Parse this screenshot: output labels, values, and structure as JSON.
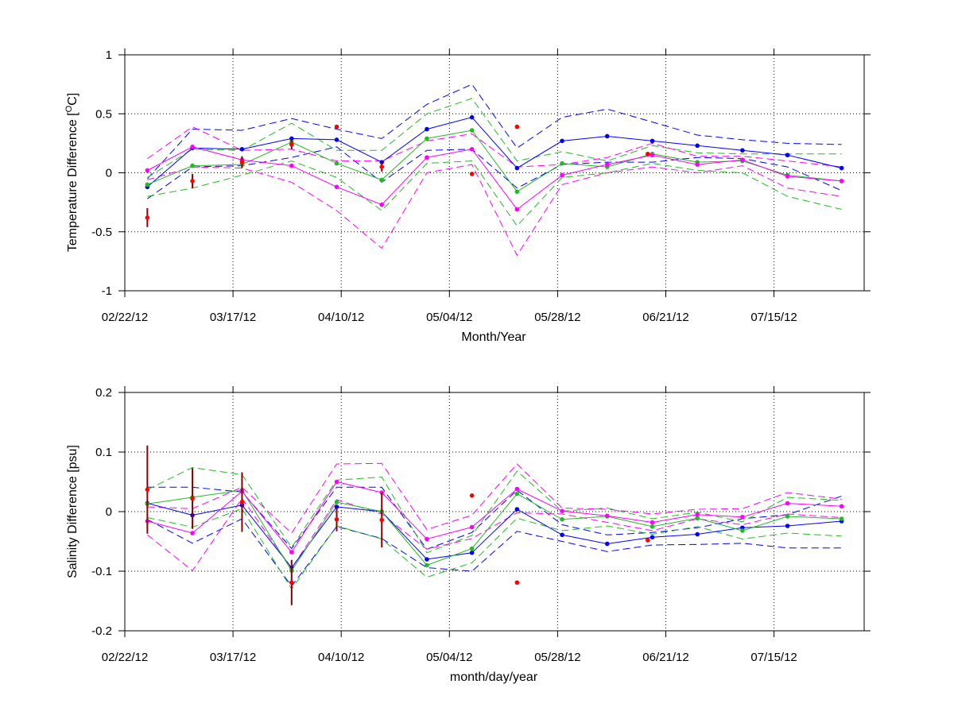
{
  "chart_data": [
    {
      "type": "line",
      "ylabel_main": "Temperature Difference [",
      "ylabel_sup": "O",
      "ylabel_tail": "C]",
      "xlabel": "Month/Year",
      "ylim": [
        -1,
        1
      ],
      "yticks": [
        -1,
        -0.5,
        0,
        0.5,
        1
      ],
      "ytick_labels": [
        "-1",
        "-0.5",
        "0",
        "0.5",
        "1"
      ],
      "xlim": [
        "2012-02-22",
        "2012-08-04"
      ],
      "xticks": [
        "2012-02-22",
        "2012-03-17",
        "2012-04-10",
        "2012-05-04",
        "2012-05-28",
        "2012-06-21",
        "2012-07-15"
      ],
      "xtick_labels": [
        "02/22/12",
        "03/17/12",
        "04/10/12",
        "05/04/12",
        "05/28/12",
        "06/21/12",
        "07/15/12"
      ],
      "grid": true,
      "series": [
        {
          "color": "#0000ff",
          "style": "solid",
          "markers": true,
          "x": [
            "2012-02-27",
            "2012-03-08",
            "2012-03-19",
            "2012-03-30",
            "2012-04-09",
            "2012-04-19",
            "2012-04-29",
            "2012-05-09",
            "2012-05-19",
            "2012-05-29",
            "2012-06-08",
            "2012-06-18",
            "2012-06-28",
            "2012-07-08",
            "2012-07-18",
            "2012-07-30"
          ],
          "y": [
            -0.12,
            0.21,
            0.2,
            0.29,
            0.28,
            0.09,
            0.37,
            0.47,
            0.04,
            0.27,
            0.31,
            0.27,
            0.23,
            0.19,
            0.15,
            0.04
          ]
        },
        {
          "color": "#0000ff",
          "style": "dashed",
          "markers": false,
          "x": [
            "2012-02-27",
            "2012-03-08",
            "2012-03-19",
            "2012-03-30",
            "2012-04-09",
            "2012-04-19",
            "2012-04-29",
            "2012-05-09",
            "2012-05-19",
            "2012-05-29",
            "2012-06-08",
            "2012-06-18",
            "2012-06-28",
            "2012-07-08",
            "2012-07-18",
            "2012-07-30"
          ],
          "y": [
            -0.05,
            0.37,
            0.36,
            0.46,
            0.37,
            0.29,
            0.58,
            0.75,
            0.21,
            0.47,
            0.54,
            0.43,
            0.32,
            0.28,
            0.25,
            0.24
          ]
        },
        {
          "color": "#0000ff",
          "style": "dashed",
          "markers": false,
          "x": [
            "2012-02-27",
            "2012-03-08",
            "2012-03-19",
            "2012-03-30",
            "2012-04-09",
            "2012-04-19",
            "2012-04-29",
            "2012-05-09",
            "2012-05-19",
            "2012-05-29",
            "2012-06-08",
            "2012-06-18",
            "2012-06-28",
            "2012-07-08",
            "2012-07-18",
            "2012-07-30"
          ],
          "y": [
            -0.22,
            0.05,
            0.06,
            0.13,
            0.22,
            -0.08,
            0.19,
            0.2,
            -0.13,
            0.07,
            0.09,
            0.09,
            0.13,
            0.12,
            0.05,
            -0.15
          ]
        },
        {
          "color": "#22bb22",
          "style": "solid",
          "markers": true,
          "x": [
            "2012-02-27",
            "2012-03-08",
            "2012-03-19",
            "2012-03-30",
            "2012-04-09",
            "2012-04-19",
            "2012-04-29",
            "2012-05-09",
            "2012-05-19",
            "2012-05-29",
            "2012-06-08",
            "2012-06-18",
            "2012-06-28",
            "2012-07-08",
            "2012-07-18",
            "2012-07-30"
          ],
          "y": [
            -0.1,
            0.06,
            0.07,
            0.26,
            0.08,
            -0.06,
            0.29,
            0.36,
            -0.16,
            0.08,
            0.05,
            0.16,
            0.09,
            0.1,
            -0.02,
            -0.07
          ]
        },
        {
          "color": "#22bb22",
          "style": "dashed",
          "markers": false,
          "x": [
            "2012-02-27",
            "2012-03-08",
            "2012-03-19",
            "2012-03-30",
            "2012-04-09",
            "2012-04-19",
            "2012-04-29",
            "2012-05-09",
            "2012-05-19",
            "2012-05-29",
            "2012-06-08",
            "2012-06-18",
            "2012-06-28",
            "2012-07-08",
            "2012-07-18",
            "2012-07-30"
          ],
          "y": [
            -0.04,
            0.2,
            0.19,
            0.42,
            0.19,
            0.19,
            0.5,
            0.63,
            0.1,
            0.18,
            0.1,
            0.23,
            0.17,
            0.16,
            0.16,
            0.16
          ]
        },
        {
          "color": "#22bb22",
          "style": "dashed",
          "markers": false,
          "x": [
            "2012-02-27",
            "2012-03-08",
            "2012-03-19",
            "2012-03-30",
            "2012-04-09",
            "2012-04-19",
            "2012-04-29",
            "2012-05-09",
            "2012-05-19",
            "2012-05-29",
            "2012-06-08",
            "2012-06-18",
            "2012-06-28",
            "2012-07-08",
            "2012-07-18",
            "2012-07-30"
          ],
          "y": [
            -0.2,
            -0.13,
            -0.02,
            0.1,
            -0.04,
            -0.32,
            0.08,
            0.1,
            -0.45,
            -0.04,
            0.0,
            0.08,
            0.02,
            0.0,
            -0.2,
            -0.31
          ]
        },
        {
          "color": "#ff00ff",
          "style": "solid",
          "markers": true,
          "x": [
            "2012-02-27",
            "2012-03-08",
            "2012-03-19",
            "2012-03-30",
            "2012-04-09",
            "2012-04-19",
            "2012-04-29",
            "2012-05-09",
            "2012-05-19",
            "2012-05-29",
            "2012-06-08",
            "2012-06-18",
            "2012-06-28",
            "2012-07-08",
            "2012-07-18",
            "2012-07-30"
          ],
          "y": [
            0.02,
            0.22,
            0.11,
            0.06,
            -0.12,
            -0.27,
            0.13,
            0.2,
            -0.31,
            -0.02,
            0.07,
            0.15,
            0.07,
            0.11,
            -0.03,
            -0.07
          ]
        },
        {
          "color": "#ff00ff",
          "style": "dashed",
          "markers": false,
          "x": [
            "2012-02-27",
            "2012-03-08",
            "2012-03-19",
            "2012-03-30",
            "2012-04-09",
            "2012-04-19",
            "2012-04-29",
            "2012-05-09",
            "2012-05-19",
            "2012-05-29",
            "2012-06-08",
            "2012-06-18",
            "2012-06-28",
            "2012-07-08",
            "2012-07-18",
            "2012-07-30"
          ],
          "y": [
            0.12,
            0.39,
            0.19,
            0.2,
            0.1,
            0.1,
            0.27,
            0.33,
            0.05,
            0.07,
            0.13,
            0.25,
            0.14,
            0.14,
            0.1,
            0.05
          ]
        },
        {
          "color": "#ff00ff",
          "style": "dashed",
          "markers": false,
          "x": [
            "2012-02-27",
            "2012-03-08",
            "2012-03-19",
            "2012-03-30",
            "2012-04-09",
            "2012-04-19",
            "2012-04-29",
            "2012-05-09",
            "2012-05-19",
            "2012-05-29",
            "2012-06-08",
            "2012-06-18",
            "2012-06-28",
            "2012-07-08",
            "2012-07-18",
            "2012-07-30"
          ],
          "y": [
            -0.06,
            0.05,
            0.04,
            -0.08,
            -0.32,
            -0.64,
            0.0,
            0.07,
            -0.7,
            -0.1,
            0.0,
            0.05,
            0.0,
            0.06,
            -0.13,
            -0.2
          ]
        }
      ],
      "observations": {
        "color": "#ff0000",
        "errcolor": "#8b0000",
        "x": [
          "2012-02-27",
          "2012-03-08",
          "2012-03-19",
          "2012-03-30",
          "2012-04-09",
          "2012-04-19",
          "2012-05-09",
          "2012-05-19",
          "2012-06-17"
        ],
        "y": [
          -0.38,
          -0.07,
          0.09,
          0.24,
          0.39,
          0.05,
          -0.01,
          0.39,
          0.16
        ],
        "err": [
          0.08,
          0.06,
          0.05,
          0.04,
          0.0,
          0.04,
          0.0,
          0.0,
          0.0
        ]
      }
    },
    {
      "type": "line",
      "ylabel": "Salinity Difference [psu]",
      "xlabel": "month/day/year",
      "ylim": [
        -0.2,
        0.2
      ],
      "yticks": [
        -0.2,
        -0.1,
        0,
        0.1,
        0.2
      ],
      "ytick_labels": [
        "-0.2",
        "-0.1",
        "0",
        "0.1",
        "0.2"
      ],
      "xlim": [
        "2012-02-22",
        "2012-08-04"
      ],
      "xticks": [
        "2012-02-22",
        "2012-03-17",
        "2012-04-10",
        "2012-05-04",
        "2012-05-28",
        "2012-06-21",
        "2012-07-15"
      ],
      "xtick_labels": [
        "02/22/12",
        "03/17/12",
        "04/10/12",
        "05/04/12",
        "05/28/12",
        "06/21/12",
        "07/15/12"
      ],
      "grid": true,
      "series": [
        {
          "color": "#0000ff",
          "style": "solid",
          "markers": true,
          "x": [
            "2012-02-27",
            "2012-03-08",
            "2012-03-19",
            "2012-03-30",
            "2012-04-09",
            "2012-04-19",
            "2012-04-29",
            "2012-05-09",
            "2012-05-19",
            "2012-05-29",
            "2012-06-08",
            "2012-06-18",
            "2012-06-28",
            "2012-07-08",
            "2012-07-18",
            "2012-07-30"
          ],
          "y": [
            0.014,
            -0.006,
            0.011,
            -0.094,
            0.008,
            0.0,
            -0.08,
            -0.069,
            0.004,
            -0.039,
            -0.054,
            -0.043,
            -0.038,
            -0.027,
            -0.024,
            -0.016
          ]
        },
        {
          "color": "#0000ff",
          "style": "dashed",
          "markers": false,
          "x": [
            "2012-02-27",
            "2012-03-08",
            "2012-03-19",
            "2012-03-30",
            "2012-04-09",
            "2012-04-19",
            "2012-04-29",
            "2012-05-09",
            "2012-05-19",
            "2012-05-29",
            "2012-06-08",
            "2012-06-18",
            "2012-06-28",
            "2012-07-08",
            "2012-07-18",
            "2012-07-30"
          ],
          "y": [
            0.041,
            0.041,
            0.033,
            -0.062,
            0.041,
            0.041,
            -0.063,
            -0.035,
            0.036,
            -0.022,
            -0.039,
            -0.035,
            -0.027,
            -0.012,
            -0.005,
            0.026
          ]
        },
        {
          "color": "#0000ff",
          "style": "dashed",
          "markers": false,
          "x": [
            "2012-02-27",
            "2012-03-08",
            "2012-03-19",
            "2012-03-30",
            "2012-04-09",
            "2012-04-19",
            "2012-04-29",
            "2012-05-09",
            "2012-05-19",
            "2012-05-29",
            "2012-06-08",
            "2012-06-18",
            "2012-06-28",
            "2012-07-08",
            "2012-07-18",
            "2012-07-30"
          ],
          "y": [
            -0.013,
            -0.053,
            -0.012,
            -0.125,
            -0.025,
            -0.045,
            -0.094,
            -0.1,
            -0.033,
            -0.05,
            -0.067,
            -0.056,
            -0.055,
            -0.053,
            -0.061,
            -0.061
          ]
        },
        {
          "color": "#22bb22",
          "style": "solid",
          "markers": true,
          "x": [
            "2012-02-27",
            "2012-03-08",
            "2012-03-19",
            "2012-03-30",
            "2012-04-09",
            "2012-04-19",
            "2012-04-29",
            "2012-05-09",
            "2012-05-19",
            "2012-05-29",
            "2012-06-08",
            "2012-06-18",
            "2012-06-28",
            "2012-07-08",
            "2012-07-18",
            "2012-07-30"
          ],
          "y": [
            0.013,
            0.024,
            0.036,
            -0.099,
            0.016,
            0.0,
            -0.09,
            -0.062,
            0.03,
            -0.013,
            -0.008,
            -0.025,
            -0.011,
            -0.032,
            -0.008,
            -0.012
          ]
        },
        {
          "color": "#22bb22",
          "style": "dashed",
          "markers": false,
          "x": [
            "2012-02-27",
            "2012-03-08",
            "2012-03-19",
            "2012-03-30",
            "2012-04-09",
            "2012-04-19",
            "2012-04-29",
            "2012-05-09",
            "2012-05-19",
            "2012-05-29",
            "2012-06-08",
            "2012-06-18",
            "2012-06-28",
            "2012-07-08",
            "2012-07-18",
            "2012-07-30"
          ],
          "y": [
            0.037,
            0.074,
            0.062,
            -0.06,
            0.053,
            0.058,
            -0.069,
            -0.04,
            0.068,
            0.001,
            0.006,
            -0.012,
            -0.001,
            -0.017,
            0.024,
            0.019
          ]
        },
        {
          "color": "#22bb22",
          "style": "dashed",
          "markers": false,
          "x": [
            "2012-02-27",
            "2012-03-08",
            "2012-03-19",
            "2012-03-30",
            "2012-04-09",
            "2012-04-19",
            "2012-04-29",
            "2012-05-09",
            "2012-05-19",
            "2012-05-29",
            "2012-06-08",
            "2012-06-18",
            "2012-06-28",
            "2012-07-08",
            "2012-07-18",
            "2012-07-30"
          ],
          "y": [
            -0.01,
            -0.026,
            0.005,
            -0.13,
            -0.024,
            -0.046,
            -0.11,
            -0.086,
            -0.011,
            -0.032,
            -0.024,
            -0.038,
            -0.025,
            -0.046,
            -0.036,
            -0.041
          ]
        },
        {
          "color": "#ff00ff",
          "style": "solid",
          "markers": true,
          "x": [
            "2012-02-27",
            "2012-03-08",
            "2012-03-19",
            "2012-03-30",
            "2012-04-09",
            "2012-04-19",
            "2012-04-29",
            "2012-05-09",
            "2012-05-19",
            "2012-05-29",
            "2012-06-08",
            "2012-06-18",
            "2012-06-28",
            "2012-07-08",
            "2012-07-18",
            "2012-07-30"
          ],
          "y": [
            -0.016,
            -0.036,
            0.034,
            -0.068,
            0.05,
            0.032,
            -0.046,
            -0.026,
            0.038,
            0.001,
            -0.007,
            -0.018,
            -0.005,
            -0.009,
            0.014,
            0.009
          ]
        },
        {
          "color": "#ff00ff",
          "style": "dashed",
          "markers": false,
          "x": [
            "2012-02-27",
            "2012-03-08",
            "2012-03-19",
            "2012-03-30",
            "2012-04-09",
            "2012-04-19",
            "2012-04-29",
            "2012-05-09",
            "2012-05-19",
            "2012-05-29",
            "2012-06-08",
            "2012-06-18",
            "2012-06-28",
            "2012-07-08",
            "2012-07-18",
            "2012-07-30"
          ],
          "y": [
            0.008,
            0.005,
            0.041,
            -0.036,
            0.08,
            0.081,
            -0.03,
            -0.006,
            0.08,
            0.006,
            0.004,
            -0.004,
            0.004,
            0.005,
            0.032,
            0.021
          ]
        },
        {
          "color": "#ff00ff",
          "style": "dashed",
          "markers": false,
          "x": [
            "2012-02-27",
            "2012-03-08",
            "2012-03-19",
            "2012-03-30",
            "2012-04-09",
            "2012-04-19",
            "2012-04-29",
            "2012-05-09",
            "2012-05-19",
            "2012-05-29",
            "2012-06-08",
            "2012-06-18",
            "2012-06-28",
            "2012-07-08",
            "2012-07-18",
            "2012-07-30"
          ],
          "y": [
            -0.039,
            -0.099,
            0.022,
            -0.095,
            0.02,
            -0.004,
            -0.063,
            -0.045,
            -0.002,
            -0.004,
            -0.018,
            -0.032,
            -0.012,
            -0.022,
            -0.004,
            -0.01
          ]
        }
      ],
      "observations": {
        "color": "#ff0000",
        "errcolor": "#8b0000",
        "x": [
          "2012-02-27",
          "2012-03-08",
          "2012-03-19",
          "2012-03-30",
          "2012-04-09",
          "2012-04-19",
          "2012-05-09",
          "2012-05-19",
          "2012-06-17"
        ],
        "y": [
          0.037,
          0.022,
          0.016,
          -0.119,
          -0.013,
          -0.014,
          0.027,
          -0.119,
          -0.048
        ],
        "err": [
          0.074,
          0.051,
          0.05,
          0.038,
          0.02,
          0.046,
          0.0,
          0.0,
          0.0
        ]
      }
    }
  ]
}
